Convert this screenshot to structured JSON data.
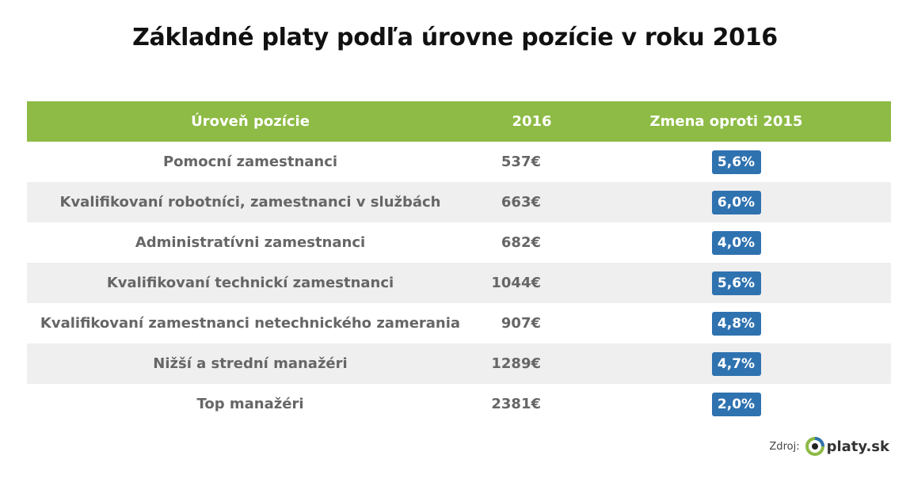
{
  "title": "Základné platy podľa úrovne pozície v roku 2016",
  "colors": {
    "header_bg": "#8dbb45",
    "badge_bg": "#2f72b0",
    "alt_row_bg": "#efefef"
  },
  "table": {
    "headers": {
      "level": "Úroveň pozície",
      "year": "2016",
      "change": "Zmena oproti 2015"
    }
  },
  "chart_data": {
    "type": "table",
    "title": "Základné platy podľa úrovne pozície v roku 2016",
    "columns": [
      "Úroveň pozície",
      "2016",
      "Zmena oproti 2015"
    ],
    "rows": [
      {
        "level": "Pomocní zamestnanci",
        "salary": "537€",
        "change": "5,6%"
      },
      {
        "level": "Kvalifikovaní robotníci, zamestnanci v službách",
        "salary": "663€",
        "change": "6,0%"
      },
      {
        "level": "Administratívni zamestnanci",
        "salary": "682€",
        "change": "4,0%"
      },
      {
        "level": "Kvalifikovaní technickí zamestnanci",
        "salary": "1044€",
        "change": "5,6%"
      },
      {
        "level": "Kvalifikovaní zamestnanci netechnického zamerania",
        "salary": "907€",
        "change": "4,8%"
      },
      {
        "level": "Nižší a strední manažéri",
        "salary": "1289€",
        "change": "4,7%"
      },
      {
        "level": "Top manažéri",
        "salary": "2381€",
        "change": "2,0%"
      }
    ]
  },
  "source": {
    "label": "Zdroj:",
    "logo_text": "platy.sk",
    "logo_icon": "platy-eye-logo-icon"
  }
}
